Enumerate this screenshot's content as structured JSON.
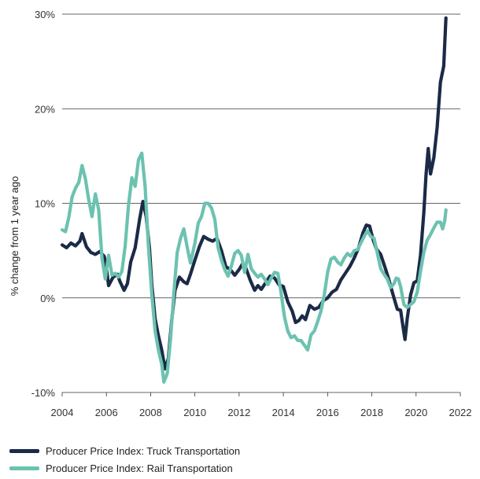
{
  "chart_data": {
    "type": "line",
    "title": "",
    "xlabel": "",
    "ylabel": "% change from 1 year ago",
    "xlim": [
      2004,
      2022
    ],
    "ylim": [
      -10,
      30
    ],
    "x_ticks": [
      "2004",
      "2006",
      "2008",
      "2010",
      "2012",
      "2014",
      "2016",
      "2018",
      "2020",
      "2022"
    ],
    "y_ticks": [
      {
        "value": 30,
        "label": "30%"
      },
      {
        "value": 20,
        "label": "20%"
      },
      {
        "value": 10,
        "label": "10%"
      },
      {
        "value": 0,
        "label": "0%"
      },
      {
        "value": -10,
        "label": "-10%"
      }
    ],
    "grid": "horizontal",
    "legend_position": "bottom-left",
    "series": [
      {
        "name": "Producer Price Index: Truck Transportation",
        "color": "#1b2a47",
        "points": [
          [
            2004.0,
            5.6
          ],
          [
            2004.2,
            5.3
          ],
          [
            2004.4,
            5.8
          ],
          [
            2004.6,
            5.5
          ],
          [
            2004.8,
            6.0
          ],
          [
            2004.9,
            6.8
          ],
          [
            2005.1,
            5.4
          ],
          [
            2005.3,
            4.8
          ],
          [
            2005.5,
            4.6
          ],
          [
            2005.7,
            4.9
          ],
          [
            2005.9,
            4.4
          ],
          [
            2006.0,
            3.2
          ],
          [
            2006.1,
            1.3
          ],
          [
            2006.3,
            2.2
          ],
          [
            2006.5,
            2.5
          ],
          [
            2006.6,
            1.8
          ],
          [
            2006.8,
            0.8
          ],
          [
            2006.95,
            1.5
          ],
          [
            2007.1,
            3.8
          ],
          [
            2007.3,
            5.3
          ],
          [
            2007.5,
            8.3
          ],
          [
            2007.65,
            10.2
          ],
          [
            2007.8,
            8.6
          ],
          [
            2007.95,
            5.2
          ],
          [
            2008.05,
            1.5
          ],
          [
            2008.2,
            -2.2
          ],
          [
            2008.35,
            -4.0
          ],
          [
            2008.5,
            -5.5
          ],
          [
            2008.65,
            -7.5
          ],
          [
            2008.8,
            -6.4
          ],
          [
            2008.95,
            -2.4
          ],
          [
            2009.1,
            0.8
          ],
          [
            2009.3,
            2.2
          ],
          [
            2009.5,
            1.7
          ],
          [
            2009.65,
            1.5
          ],
          [
            2009.8,
            2.5
          ],
          [
            2010.0,
            4.0
          ],
          [
            2010.2,
            5.4
          ],
          [
            2010.4,
            6.5
          ],
          [
            2010.6,
            6.2
          ],
          [
            2010.8,
            6.0
          ],
          [
            2011.0,
            6.3
          ],
          [
            2011.2,
            5.0
          ],
          [
            2011.4,
            3.3
          ],
          [
            2011.6,
            3.0
          ],
          [
            2011.8,
            2.4
          ],
          [
            2012.0,
            3.0
          ],
          [
            2012.15,
            3.6
          ],
          [
            2012.3,
            3.2
          ],
          [
            2012.5,
            1.9
          ],
          [
            2012.7,
            0.8
          ],
          [
            2012.85,
            1.3
          ],
          [
            2013.0,
            0.9
          ],
          [
            2013.2,
            1.6
          ],
          [
            2013.4,
            2.3
          ],
          [
            2013.6,
            2.1
          ],
          [
            2013.8,
            1.4
          ],
          [
            2014.0,
            1.2
          ],
          [
            2014.2,
            -0.4
          ],
          [
            2014.4,
            -1.4
          ],
          [
            2014.55,
            -2.6
          ],
          [
            2014.7,
            -2.4
          ],
          [
            2014.85,
            -1.9
          ],
          [
            2015.0,
            -2.3
          ],
          [
            2015.2,
            -0.8
          ],
          [
            2015.4,
            -1.2
          ],
          [
            2015.6,
            -1.0
          ],
          [
            2015.8,
            -0.3
          ],
          [
            2016.0,
            0.0
          ],
          [
            2016.2,
            0.6
          ],
          [
            2016.4,
            0.9
          ],
          [
            2016.6,
            1.9
          ],
          [
            2016.8,
            2.6
          ],
          [
            2017.0,
            3.3
          ],
          [
            2017.2,
            4.2
          ],
          [
            2017.4,
            5.3
          ],
          [
            2017.6,
            6.9
          ],
          [
            2017.75,
            7.7
          ],
          [
            2017.9,
            7.6
          ],
          [
            2018.05,
            6.2
          ],
          [
            2018.2,
            5.2
          ],
          [
            2018.4,
            4.6
          ],
          [
            2018.6,
            3.2
          ],
          [
            2018.75,
            2.1
          ],
          [
            2018.9,
            0.8
          ],
          [
            2019.0,
            0.0
          ],
          [
            2019.15,
            -1.2
          ],
          [
            2019.3,
            -1.3
          ],
          [
            2019.4,
            -2.9
          ],
          [
            2019.5,
            -4.4
          ],
          [
            2019.6,
            -2.2
          ],
          [
            2019.75,
            0.3
          ],
          [
            2019.9,
            1.6
          ],
          [
            2020.05,
            1.8
          ],
          [
            2020.2,
            4.5
          ],
          [
            2020.35,
            9.0
          ],
          [
            2020.45,
            13.0
          ],
          [
            2020.55,
            15.8
          ],
          [
            2020.65,
            13.1
          ],
          [
            2020.8,
            14.8
          ],
          [
            2020.95,
            18.0
          ],
          [
            2021.1,
            22.8
          ],
          [
            2021.25,
            24.5
          ],
          [
            2021.35,
            29.6
          ]
        ]
      },
      {
        "name": "Producer Price Index: Rail Transportation",
        "color": "#6cc2b0",
        "points": [
          [
            2004.0,
            7.2
          ],
          [
            2004.15,
            7.0
          ],
          [
            2004.3,
            8.5
          ],
          [
            2004.45,
            10.7
          ],
          [
            2004.6,
            11.6
          ],
          [
            2004.75,
            12.2
          ],
          [
            2004.9,
            14.0
          ],
          [
            2005.05,
            12.6
          ],
          [
            2005.2,
            10.4
          ],
          [
            2005.35,
            8.6
          ],
          [
            2005.5,
            11.0
          ],
          [
            2005.65,
            9.3
          ],
          [
            2005.8,
            4.2
          ],
          [
            2005.95,
            2.0
          ],
          [
            2006.1,
            4.5
          ],
          [
            2006.25,
            2.4
          ],
          [
            2006.4,
            2.6
          ],
          [
            2006.55,
            2.2
          ],
          [
            2006.7,
            2.8
          ],
          [
            2006.85,
            5.5
          ],
          [
            2007.0,
            9.8
          ],
          [
            2007.15,
            12.7
          ],
          [
            2007.3,
            11.8
          ],
          [
            2007.45,
            14.6
          ],
          [
            2007.6,
            15.3
          ],
          [
            2007.75,
            11.8
          ],
          [
            2007.9,
            5.5
          ],
          [
            2008.05,
            0.5
          ],
          [
            2008.2,
            -3.5
          ],
          [
            2008.35,
            -5.5
          ],
          [
            2008.5,
            -7.0
          ],
          [
            2008.6,
            -8.9
          ],
          [
            2008.75,
            -8.0
          ],
          [
            2008.9,
            -4.4
          ],
          [
            2009.05,
            0.6
          ],
          [
            2009.2,
            4.8
          ],
          [
            2009.35,
            6.3
          ],
          [
            2009.5,
            7.3
          ],
          [
            2009.65,
            5.4
          ],
          [
            2009.8,
            3.7
          ],
          [
            2010.0,
            5.8
          ],
          [
            2010.15,
            7.9
          ],
          [
            2010.3,
            8.6
          ],
          [
            2010.45,
            10.0
          ],
          [
            2010.6,
            10.0
          ],
          [
            2010.75,
            9.5
          ],
          [
            2010.9,
            8.3
          ],
          [
            2011.05,
            5.3
          ],
          [
            2011.2,
            4.0
          ],
          [
            2011.35,
            3.0
          ],
          [
            2011.5,
            2.3
          ],
          [
            2011.65,
            3.4
          ],
          [
            2011.8,
            4.7
          ],
          [
            2011.95,
            5.0
          ],
          [
            2012.1,
            4.5
          ],
          [
            2012.25,
            2.7
          ],
          [
            2012.4,
            4.6
          ],
          [
            2012.55,
            3.1
          ],
          [
            2012.7,
            2.6
          ],
          [
            2012.85,
            2.2
          ],
          [
            2013.0,
            2.5
          ],
          [
            2013.15,
            2.0
          ],
          [
            2013.3,
            1.4
          ],
          [
            2013.45,
            2.1
          ],
          [
            2013.6,
            2.7
          ],
          [
            2013.75,
            2.6
          ],
          [
            2013.9,
            0.5
          ],
          [
            2014.05,
            -2.0
          ],
          [
            2014.2,
            -3.5
          ],
          [
            2014.35,
            -4.2
          ],
          [
            2014.5,
            -4.0
          ],
          [
            2014.65,
            -4.5
          ],
          [
            2014.8,
            -4.5
          ],
          [
            2014.95,
            -5.0
          ],
          [
            2015.1,
            -5.5
          ],
          [
            2015.25,
            -3.9
          ],
          [
            2015.4,
            -3.5
          ],
          [
            2015.55,
            -2.5
          ],
          [
            2015.7,
            -1.4
          ],
          [
            2015.85,
            0.3
          ],
          [
            2016.0,
            2.7
          ],
          [
            2016.15,
            4.1
          ],
          [
            2016.3,
            4.3
          ],
          [
            2016.45,
            3.8
          ],
          [
            2016.6,
            3.5
          ],
          [
            2016.75,
            4.2
          ],
          [
            2016.9,
            4.7
          ],
          [
            2017.05,
            4.4
          ],
          [
            2017.2,
            5.0
          ],
          [
            2017.35,
            5.1
          ],
          [
            2017.5,
            5.8
          ],
          [
            2017.65,
            6.5
          ],
          [
            2017.8,
            7.1
          ],
          [
            2017.95,
            6.5
          ],
          [
            2018.1,
            6.3
          ],
          [
            2018.25,
            4.7
          ],
          [
            2018.4,
            3.1
          ],
          [
            2018.55,
            2.5
          ],
          [
            2018.7,
            2.0
          ],
          [
            2018.85,
            1.1
          ],
          [
            2019.0,
            1.5
          ],
          [
            2019.1,
            2.1
          ],
          [
            2019.2,
            2.0
          ],
          [
            2019.3,
            1.2
          ],
          [
            2019.45,
            -0.7
          ],
          [
            2019.6,
            -1.0
          ],
          [
            2019.75,
            -0.7
          ],
          [
            2019.9,
            -0.4
          ],
          [
            2020.05,
            0.6
          ],
          [
            2020.2,
            2.8
          ],
          [
            2020.35,
            4.8
          ],
          [
            2020.5,
            6.1
          ],
          [
            2020.65,
            6.7
          ],
          [
            2020.8,
            7.4
          ],
          [
            2020.95,
            8.0
          ],
          [
            2021.1,
            8.0
          ],
          [
            2021.2,
            7.3
          ],
          [
            2021.3,
            8.2
          ],
          [
            2021.35,
            9.3
          ]
        ]
      }
    ]
  }
}
